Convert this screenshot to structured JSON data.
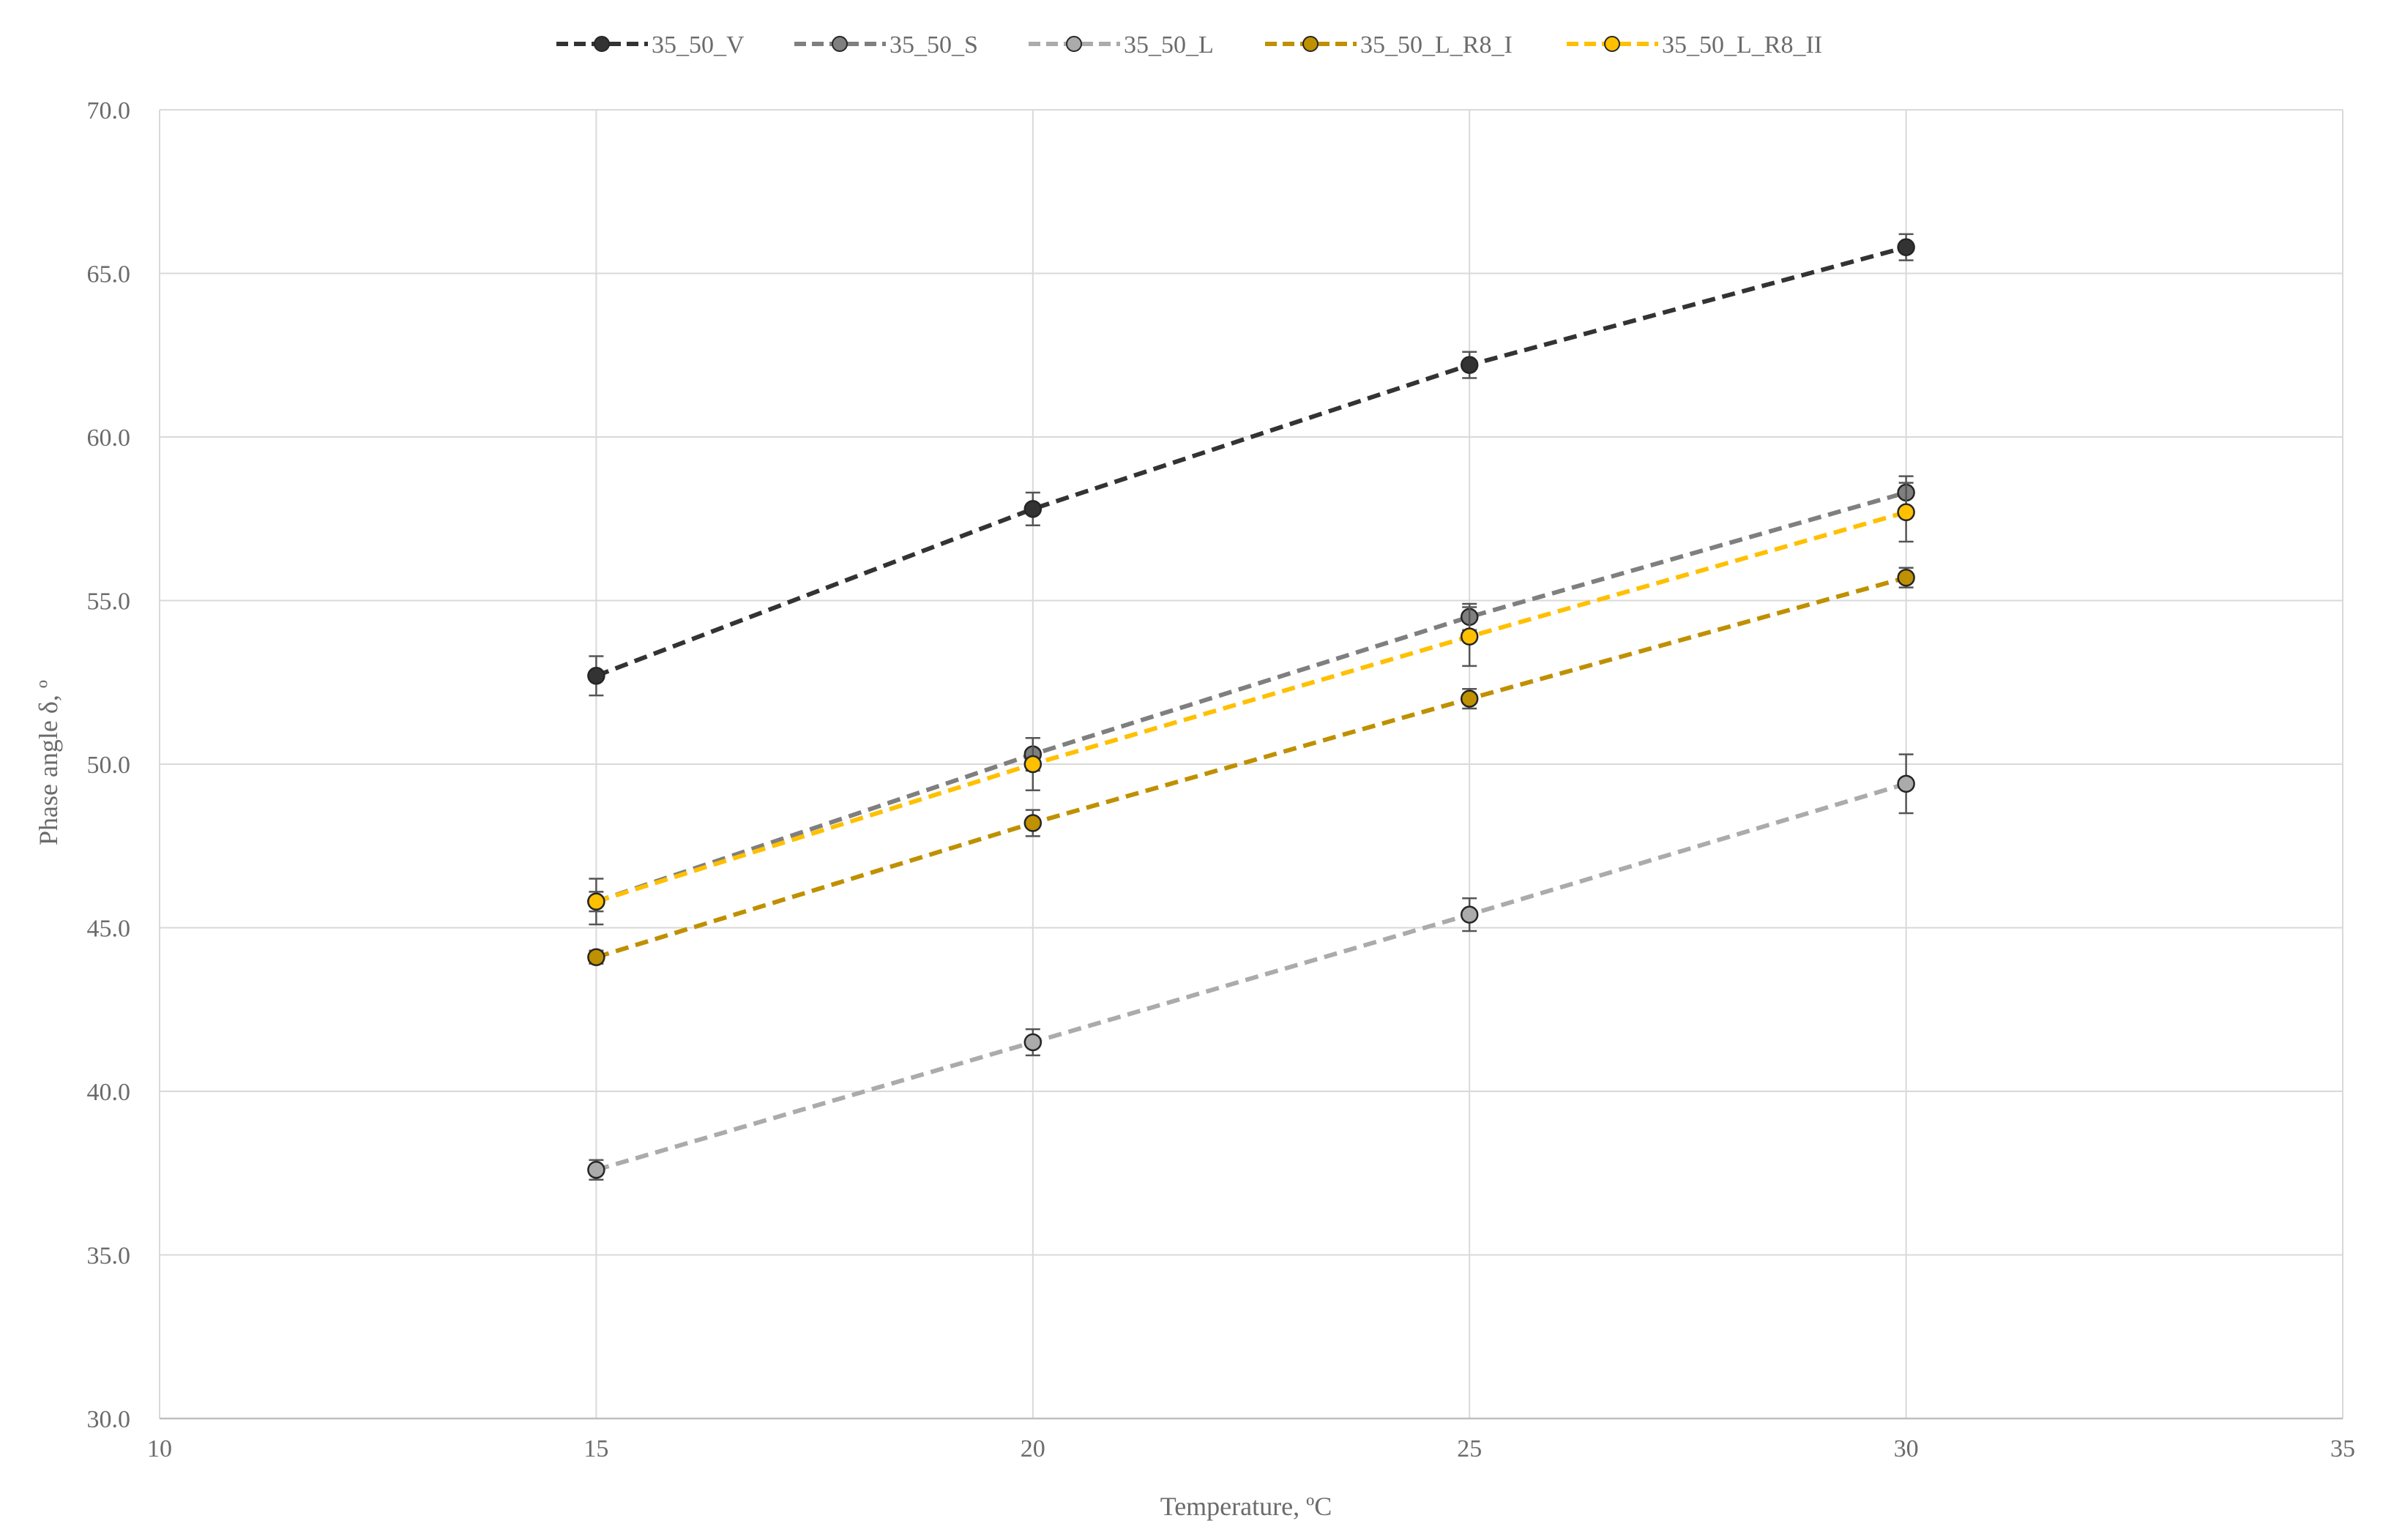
{
  "chart_data": {
    "type": "line",
    "title": "",
    "xlabel": "Temperature, ºC",
    "ylabel": "Phase angle δ, º",
    "xlim": [
      10,
      35
    ],
    "ylim": [
      30.0,
      70.0
    ],
    "x_ticks": [
      "10",
      "15",
      "20",
      "25",
      "30",
      "35"
    ],
    "y_ticks": [
      "30.0",
      "35.0",
      "40.0",
      "45.0",
      "50.0",
      "55.0",
      "60.0",
      "65.0",
      "70.0"
    ],
    "grid": true,
    "legend_position": "top-center",
    "x": [
      15,
      20,
      25,
      30
    ],
    "series": [
      {
        "name": "35_50_V",
        "values": [
          52.7,
          57.8,
          62.2,
          65.8
        ],
        "errors": [
          0.6,
          0.5,
          0.4,
          0.4
        ],
        "color": "#333333",
        "marker_fill": "#333333"
      },
      {
        "name": "35_50_S",
        "values": [
          45.8,
          50.3,
          54.5,
          58.3
        ],
        "errors": [
          0.7,
          0.5,
          0.4,
          0.5
        ],
        "color": "#7f7f7f",
        "marker_fill": "#7f7f7f"
      },
      {
        "name": "35_50_L",
        "values": [
          37.6,
          41.5,
          45.4,
          49.4
        ],
        "errors": [
          0.3,
          0.4,
          0.5,
          0.9
        ],
        "color": "#ababab",
        "marker_fill": "#ababab"
      },
      {
        "name": "35_50_L_R8_I",
        "values": [
          44.1,
          48.2,
          52.0,
          55.7
        ],
        "errors": [
          0.2,
          0.4,
          0.3,
          0.3
        ],
        "color": "#bf9000",
        "marker_fill": "#bf9000"
      },
      {
        "name": "35_50_L_R8_II",
        "values": [
          45.8,
          50.0,
          53.9,
          57.7
        ],
        "errors": [
          0.3,
          0.8,
          0.9,
          0.9
        ],
        "color": "#ffc000",
        "marker_fill": "#ffc000"
      }
    ]
  }
}
